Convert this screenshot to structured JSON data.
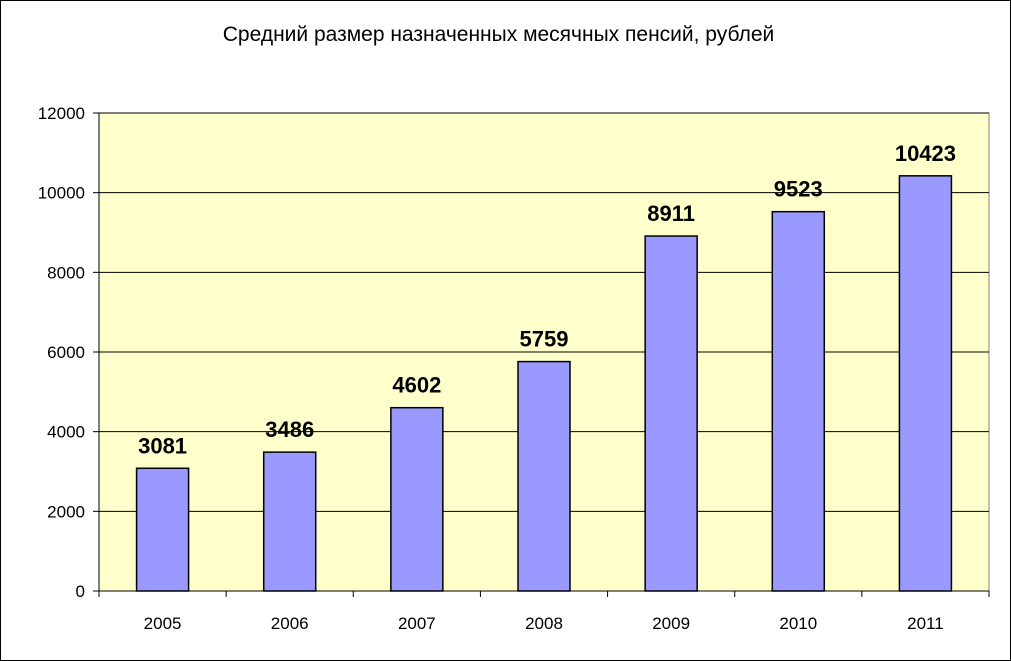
{
  "chart_data": {
    "type": "bar",
    "title": "Средний размер назначенных месячных пенсий, рублей",
    "xlabel": "",
    "ylabel": "",
    "categories": [
      "2005",
      "2006",
      "2007",
      "2008",
      "2009",
      "2010",
      "2011"
    ],
    "values": [
      3081,
      3486,
      4602,
      5759,
      8911,
      9523,
      10423
    ],
    "data_labels": [
      "3081",
      "3486",
      "4602",
      "5759",
      "8911",
      "9523",
      "10423"
    ],
    "ylim": [
      0,
      12000
    ],
    "yticks": [
      0,
      2000,
      4000,
      6000,
      8000,
      10000,
      12000
    ],
    "ytick_labels": [
      "0",
      "2000",
      "4000",
      "6000",
      "8000",
      "10000",
      "12000"
    ],
    "grid": true,
    "legend": "none",
    "colors": {
      "bar_fill": "#9999ff",
      "bar_stroke": "#000000",
      "plot_background": "#ffffcc",
      "gridline": "#000000"
    }
  }
}
